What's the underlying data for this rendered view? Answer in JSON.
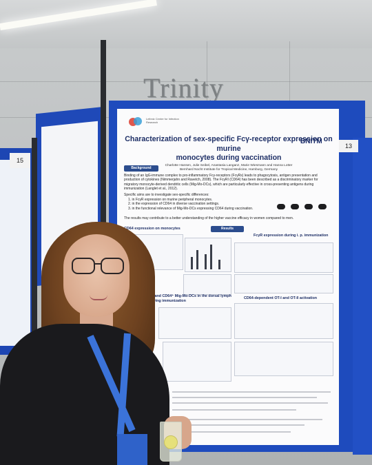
{
  "venue": {
    "sign_text": "Trinity"
  },
  "boards": {
    "left_number": "15",
    "main_number": "13"
  },
  "poster": {
    "logo_text": "Leibniz Center for Infection Research",
    "institute_logo": "BNITM",
    "title_line1": "Characterization of sex-specific Fcγ-receptor expression on murine",
    "title_line2": "monocytes during vaccination",
    "authors": "Charlotte Hansen, Julie Seibel, Anastasia Langanz, Marie Wiesmann and Hanna Lotter",
    "affiliation": "Bernhard Nocht Institute for Tropical Medicine, Hamburg, Germany",
    "sections": {
      "background": "Background",
      "results": "Results"
    },
    "background_text": "Binding of an IgG-immune complex to pro-inflammatory Fcγ-receptors (FcγRs) leads to phagocytosis, antigen presentation and production of cytokines (Nimmerjahn and Ravetch, 2008). The FcγRI (CD64) has been described as a discriminatory marker for migratory monocyte-derived dendritic cells (Mig-Mo-DCs), which are particularly effective in cross-presenting antigens during immunization (Langlet et al., 2012).",
    "aims_intro": "Specific aims are to investigate sex-specific differences:",
    "aims": [
      "1. in FcγR expression on murine peripheral monocytes.",
      "2. in the expression of CD64 in diverse vaccination settings.",
      "3. in the functional relevance of Mig-Mo-DCs expressing CD64 during vaccination."
    ],
    "aims_outro": "The results may contribute to a better understanding of the higher vaccine efficacy in women compared to men.",
    "subheads": {
      "cd64_monocytes": "CD64 expression on monocytes",
      "fcgr_immunization": "FcγR expression during i. p. immunization",
      "mig_mo_dcs": "Cells and CD64⁺ Mig-Mo-DCs in the dorsal lymph following immunization",
      "ot_activation": "CD64-dependent OT-I and OT-II activation"
    }
  }
}
